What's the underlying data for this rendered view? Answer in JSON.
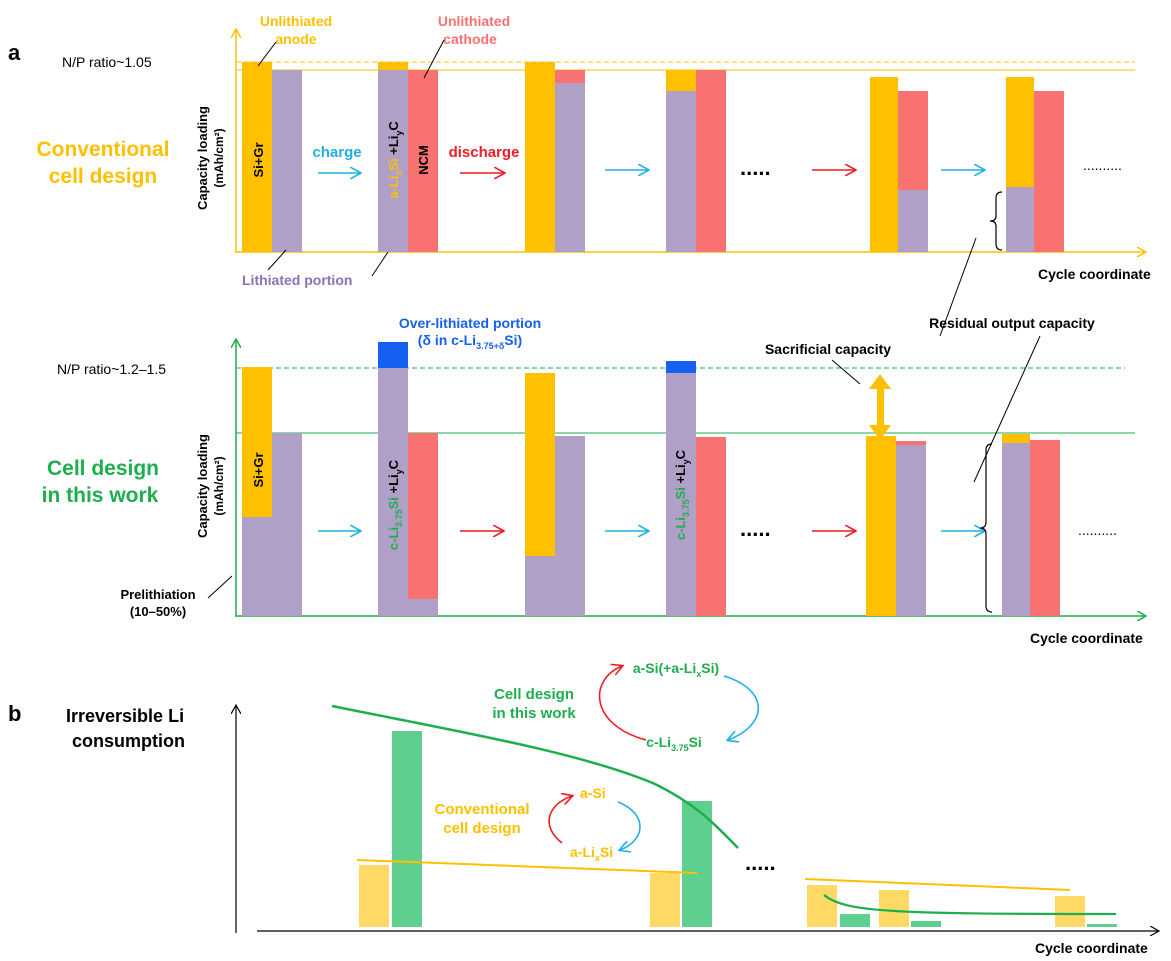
{
  "colors": {
    "anode": "#ffc000",
    "lithiated": "#b0a0c8",
    "cathode": "#f87272",
    "overlithiated": "#1560f0",
    "conventional": "#ffc000",
    "thiswork": "#1dae4e",
    "charge_arrow": "#22aee6",
    "discharge_arrow": "#ee1c24",
    "bar_yellow": "#ffd966",
    "bar_green": "#5fcf8f"
  },
  "panel_a": {
    "label": "a",
    "top": {
      "design_line1": "Conventional",
      "design_line2": "cell design",
      "np_ratio": "N/P ratio~1.05",
      "ylabel_line1": "Capacity loading",
      "ylabel_line2": "(mAh/cm²)",
      "unlithiated_anode_line1": "Unlithiated",
      "unlithiated_anode_line2": "anode",
      "unlithiated_cathode_line1": "Unlithiated",
      "unlithiated_cathode_line2": "cathode",
      "lithiated_portion": "Lithiated portion",
      "anode_label": "Si+Gr",
      "cathode_label": "NCM",
      "lithiated_anode_label_parts": {
        "a": "a-Li",
        "x": "x",
        "si": "Si",
        "rest": " +Li",
        "y": "y",
        "c": "C"
      },
      "charge": "charge",
      "discharge": "discharge",
      "ellipsis": ".....",
      "end_dots": "..........",
      "cycle_coordinate": "Cycle coordinate"
    },
    "bottom": {
      "design_line1": "Cell design",
      "design_line2": "in this work",
      "np_ratio": "N/P ratio~1.2–1.5",
      "ylabel_line1": "Capacity loading",
      "ylabel_line2": "(mAh/cm²)",
      "overlithiated_line1": "Over-lithiated portion",
      "overlithiated_line2_parts": {
        "pre": "(δ in c-Li",
        "sub": "3.75+δ",
        "post": "Si)"
      },
      "sacrificial_capacity": "Sacrificial capacity",
      "residual_output_capacity": "Residual output capacity",
      "prelithiation_line1": "Prelithiation",
      "prelithiation_line2": "(10–50%)",
      "anode_label": "Si+Gr",
      "c_li_label_parts": {
        "pre": "c-Li",
        "sub": "3.75",
        "si": "Si",
        "rest": " +Li",
        "y": "y",
        "c": "C"
      },
      "ellipsis": ".....",
      "end_dots": "..........",
      "cycle_coordinate": "Cycle coordinate"
    }
  },
  "panel_b": {
    "label": "b",
    "ylabel_line1": "Irreversible Li",
    "ylabel_line2": "consumption",
    "thiswork_line1": "Cell design",
    "thiswork_line2": "in this work",
    "thiswork_cycle_top_parts": {
      "pre": "a-Si(+a-Li",
      "sub": "x",
      "post": "Si)"
    },
    "thiswork_cycle_bottom_parts": {
      "pre": "c-Li",
      "sub": "3.75",
      "post": "Si"
    },
    "conventional_line1": "Conventional",
    "conventional_line2": "cell design",
    "conv_cycle_top": "a-Si",
    "conv_cycle_bottom_parts": {
      "pre": "a-Li",
      "sub": "x",
      "post": "Si"
    },
    "ellipsis": ".....",
    "cycle_coordinate": "Cycle coordinate"
  }
}
